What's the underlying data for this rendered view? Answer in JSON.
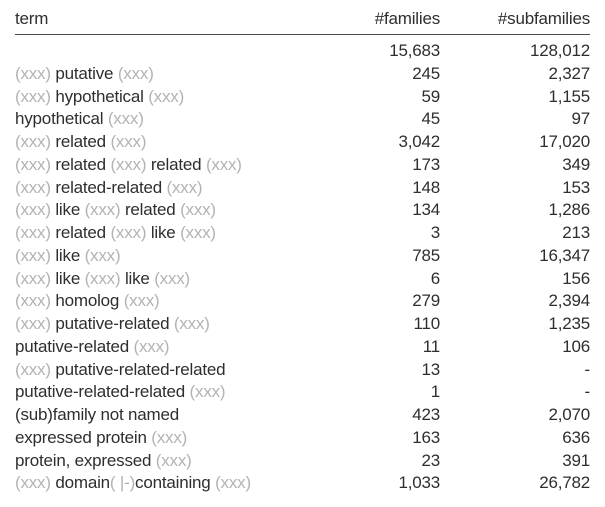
{
  "colors": {
    "background": "#ffffff",
    "text": "#2e2e2e",
    "muted": "#b3b3b3",
    "rule": "#4d4d4d"
  },
  "table": {
    "columns": [
      "term",
      "#families",
      "#subfamilies"
    ],
    "rows": [
      {
        "term": [],
        "families": "15,683",
        "subfamilies": "128,012"
      },
      {
        "term": [
          {
            "text": "(xxx) ",
            "muted": true
          },
          {
            "text": "putative",
            "muted": false
          },
          {
            "text": " (xxx)",
            "muted": true
          }
        ],
        "families": "245",
        "subfamilies": "2,327"
      },
      {
        "term": [
          {
            "text": "(xxx) ",
            "muted": true
          },
          {
            "text": "hypothetical",
            "muted": false
          },
          {
            "text": " (xxx)",
            "muted": true
          }
        ],
        "families": "59",
        "subfamilies": "1,155"
      },
      {
        "term": [
          {
            "text": "hypothetical",
            "muted": false
          },
          {
            "text": " (xxx)",
            "muted": true
          }
        ],
        "families": "45",
        "subfamilies": "97"
      },
      {
        "term": [
          {
            "text": "(xxx) ",
            "muted": true
          },
          {
            "text": "related",
            "muted": false
          },
          {
            "text": " (xxx)",
            "muted": true
          }
        ],
        "families": "3,042",
        "subfamilies": "17,020"
      },
      {
        "term": [
          {
            "text": "(xxx) ",
            "muted": true
          },
          {
            "text": "related",
            "muted": false
          },
          {
            "text": " (xxx) ",
            "muted": true
          },
          {
            "text": "related",
            "muted": false
          },
          {
            "text": " (xxx)",
            "muted": true
          }
        ],
        "families": "173",
        "subfamilies": "349"
      },
      {
        "term": [
          {
            "text": "(xxx) ",
            "muted": true
          },
          {
            "text": "related-related",
            "muted": false
          },
          {
            "text": " (xxx)",
            "muted": true
          }
        ],
        "families": "148",
        "subfamilies": "153"
      },
      {
        "term": [
          {
            "text": "(xxx) ",
            "muted": true
          },
          {
            "text": "like",
            "muted": false
          },
          {
            "text": " (xxx) ",
            "muted": true
          },
          {
            "text": "related",
            "muted": false
          },
          {
            "text": " (xxx)",
            "muted": true
          }
        ],
        "families": "134",
        "subfamilies": "1,286"
      },
      {
        "term": [
          {
            "text": "(xxx) ",
            "muted": true
          },
          {
            "text": "related",
            "muted": false
          },
          {
            "text": " (xxx) ",
            "muted": true
          },
          {
            "text": "like",
            "muted": false
          },
          {
            "text": " (xxx)",
            "muted": true
          }
        ],
        "families": "3",
        "subfamilies": "213"
      },
      {
        "term": [
          {
            "text": "(xxx) ",
            "muted": true
          },
          {
            "text": "like",
            "muted": false
          },
          {
            "text": " (xxx)",
            "muted": true
          }
        ],
        "families": "785",
        "subfamilies": "16,347"
      },
      {
        "term": [
          {
            "text": "(xxx) ",
            "muted": true
          },
          {
            "text": "like",
            "muted": false
          },
          {
            "text": " (xxx) ",
            "muted": true
          },
          {
            "text": "like",
            "muted": false
          },
          {
            "text": " (xxx)",
            "muted": true
          }
        ],
        "families": "6",
        "subfamilies": "156"
      },
      {
        "term": [
          {
            "text": "(xxx) ",
            "muted": true
          },
          {
            "text": "homolog",
            "muted": false
          },
          {
            "text": " (xxx)",
            "muted": true
          }
        ],
        "families": "279",
        "subfamilies": "2,394"
      },
      {
        "term": [
          {
            "text": "(xxx) ",
            "muted": true
          },
          {
            "text": "putative-related",
            "muted": false
          },
          {
            "text": " (xxx)",
            "muted": true
          }
        ],
        "families": "110",
        "subfamilies": "1,235"
      },
      {
        "term": [
          {
            "text": "putative-related",
            "muted": false
          },
          {
            "text": " (xxx)",
            "muted": true
          }
        ],
        "families": "11",
        "subfamilies": "106"
      },
      {
        "term": [
          {
            "text": "(xxx) ",
            "muted": true
          },
          {
            "text": "putative-related-related",
            "muted": false
          }
        ],
        "families": "13",
        "subfamilies": "-"
      },
      {
        "term": [
          {
            "text": "putative-related-related",
            "muted": false
          },
          {
            "text": " (xxx)",
            "muted": true
          }
        ],
        "families": "1",
        "subfamilies": "-"
      },
      {
        "term": [
          {
            "text": "(sub)family not named",
            "muted": false
          }
        ],
        "families": "423",
        "subfamilies": "2,070"
      },
      {
        "term": [
          {
            "text": "expressed protein",
            "muted": false
          },
          {
            "text": " (xxx)",
            "muted": true
          }
        ],
        "families": "163",
        "subfamilies": "636"
      },
      {
        "term": [
          {
            "text": "protein, expressed",
            "muted": false
          },
          {
            "text": " (xxx)",
            "muted": true
          }
        ],
        "families": "23",
        "subfamilies": "391"
      },
      {
        "term": [
          {
            "text": "(xxx) ",
            "muted": true
          },
          {
            "text": "domain",
            "muted": false
          },
          {
            "text": "( |-)",
            "muted": true
          },
          {
            "text": "containing",
            "muted": false
          },
          {
            "text": " (xxx)",
            "muted": true
          }
        ],
        "families": "1,033",
        "subfamilies": "26,782"
      }
    ]
  }
}
